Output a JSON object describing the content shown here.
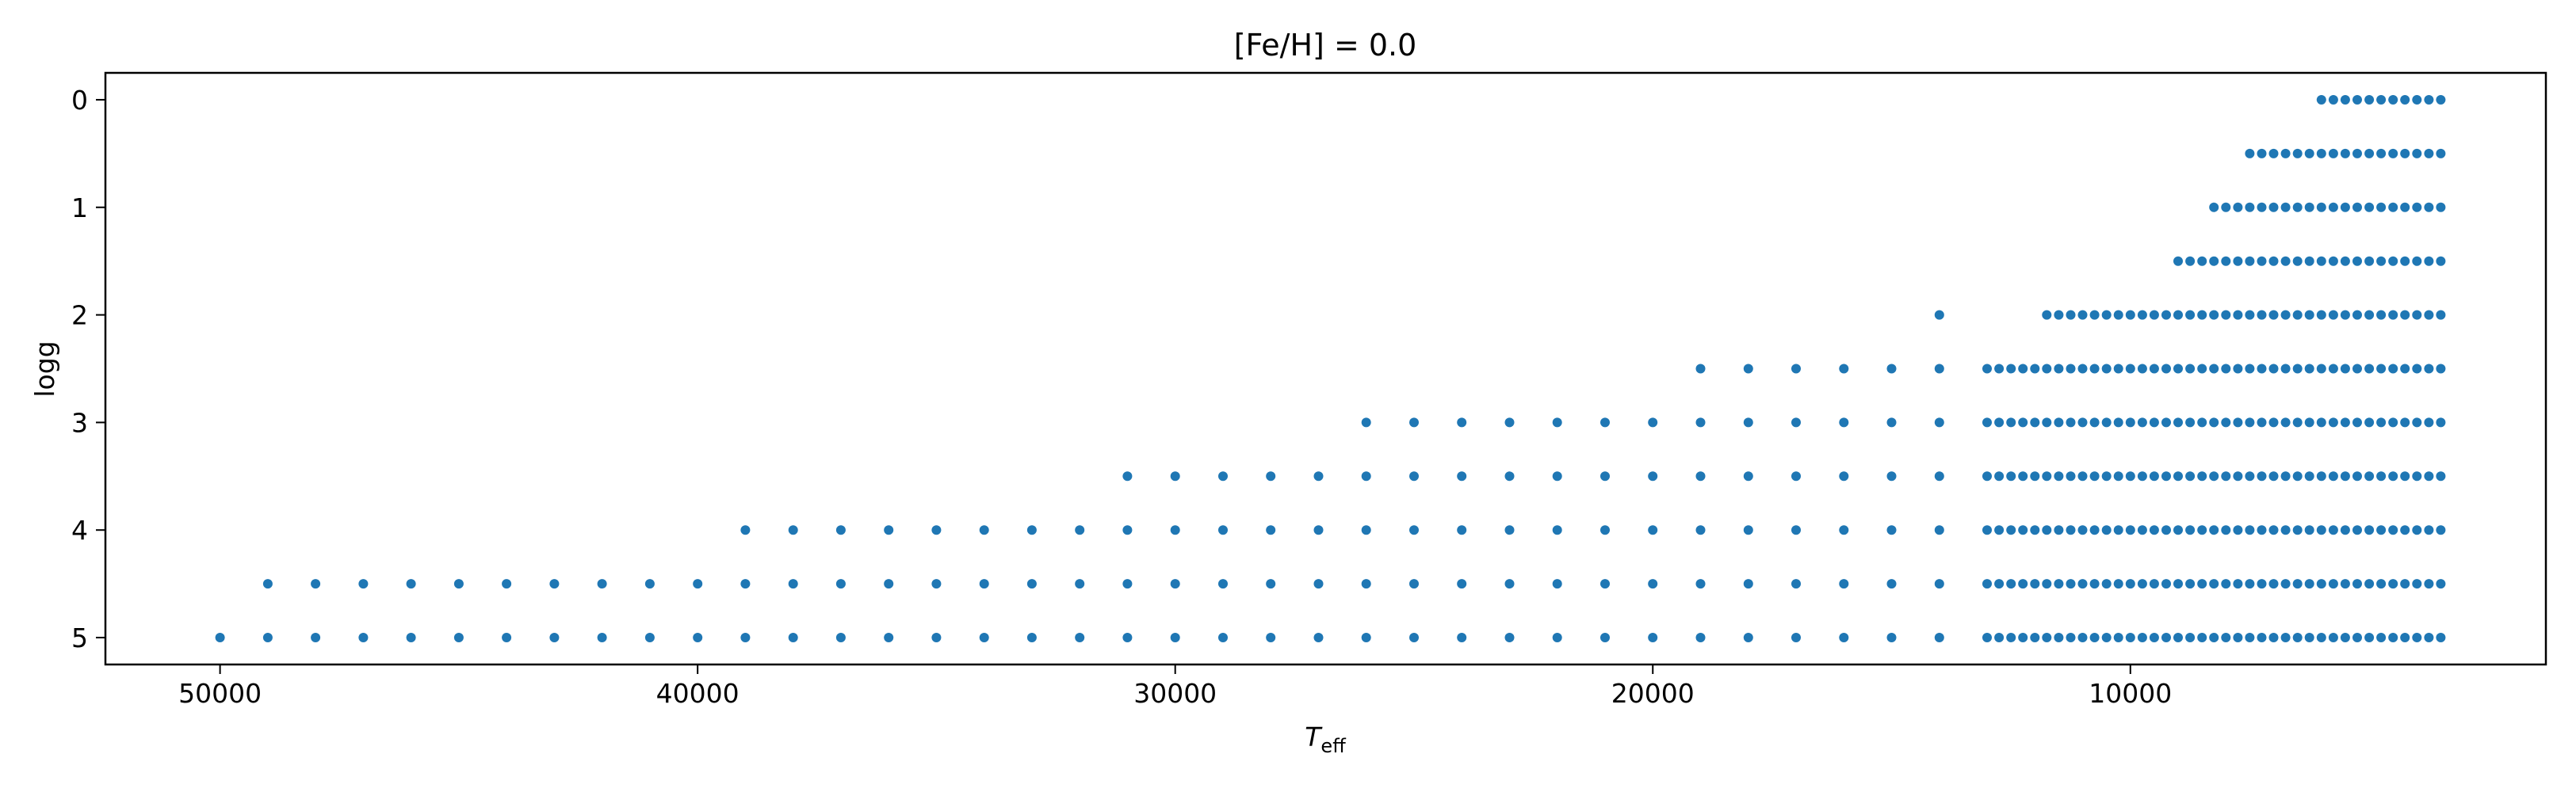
{
  "chart_data": {
    "type": "scatter",
    "title": "[Fe/H] = 0.0",
    "xlabel_main": "T",
    "xlabel_sub": "eff",
    "ylabel": "logg",
    "xlim": [
      52400,
      1300
    ],
    "ylim": [
      5.25,
      -0.25
    ],
    "x_inverted": true,
    "y_inverted": true,
    "xticks": [
      50000,
      40000,
      30000,
      20000,
      10000
    ],
    "yticks": [
      0,
      1,
      2,
      3,
      4,
      5
    ],
    "grid": false,
    "marker_color": "#1f77b4",
    "series": [
      {
        "note_rows": "each row: logg value with list of Teff values",
        "rows": [
          {
            "logg": 0.0,
            "teff": [
              6000,
              5750,
              5500,
              5250,
              5000,
              4750,
              4500,
              4250,
              4000,
              3750,
              3500
            ]
          },
          {
            "logg": 0.5,
            "teff": [
              7500,
              7250,
              7000,
              6750,
              6500,
              6250,
              6000,
              5750,
              5500,
              5250,
              5000,
              4750,
              4500,
              4250,
              4000,
              3750,
              3500
            ]
          },
          {
            "logg": 1.0,
            "teff": [
              8250,
              8000,
              7750,
              7500,
              7250,
              7000,
              6750,
              6500,
              6250,
              6000,
              5750,
              5500,
              5250,
              5000,
              4750,
              4500,
              4250,
              4000,
              3750,
              3500
            ]
          },
          {
            "logg": 1.5,
            "teff": [
              9000,
              8750,
              8500,
              8250,
              8000,
              7750,
              7500,
              7250,
              7000,
              6750,
              6500,
              6250,
              6000,
              5750,
              5500,
              5250,
              5000,
              4750,
              4500,
              4250,
              4000,
              3750,
              3500
            ]
          },
          {
            "logg": 2.0,
            "teff": [
              14000,
              11750,
              11500,
              11250,
              11000,
              10750,
              10500,
              10250,
              10000,
              9750,
              9500,
              9250,
              9000,
              8750,
              8500,
              8250,
              8000,
              7750,
              7500,
              7250,
              7000,
              6750,
              6500,
              6250,
              6000,
              5750,
              5500,
              5250,
              5000,
              4750,
              4500,
              4250,
              4000,
              3750,
              3500
            ]
          },
          {
            "logg": 2.5,
            "teff": [
              19000,
              18000,
              17000,
              16000,
              15000,
              14000,
              13000,
              12750,
              12500,
              12250,
              12000,
              11750,
              11500,
              11250,
              11000,
              10750,
              10500,
              10250,
              10000,
              9750,
              9500,
              9250,
              9000,
              8750,
              8500,
              8250,
              8000,
              7750,
              7500,
              7250,
              7000,
              6750,
              6500,
              6250,
              6000,
              5750,
              5500,
              5250,
              5000,
              4750,
              4500,
              4250,
              4000,
              3750,
              3500
            ]
          },
          {
            "logg": 3.0,
            "teff": [
              26000,
              25000,
              24000,
              23000,
              22000,
              21000,
              20000,
              19000,
              18000,
              17000,
              16000,
              15000,
              14000,
              13000,
              12750,
              12500,
              12250,
              12000,
              11750,
              11500,
              11250,
              11000,
              10750,
              10500,
              10250,
              10000,
              9750,
              9500,
              9250,
              9000,
              8750,
              8500,
              8250,
              8000,
              7750,
              7500,
              7250,
              7000,
              6750,
              6500,
              6250,
              6000,
              5750,
              5500,
              5250,
              5000,
              4750,
              4500,
              4250,
              4000,
              3750,
              3500
            ]
          },
          {
            "logg": 3.5,
            "teff": [
              31000,
              30000,
              29000,
              28000,
              27000,
              26000,
              25000,
              24000,
              23000,
              22000,
              21000,
              20000,
              19000,
              18000,
              17000,
              16000,
              15000,
              14000,
              13000,
              12750,
              12500,
              12250,
              12000,
              11750,
              11500,
              11250,
              11000,
              10750,
              10500,
              10250,
              10000,
              9750,
              9500,
              9250,
              9000,
              8750,
              8500,
              8250,
              8000,
              7750,
              7500,
              7250,
              7000,
              6750,
              6500,
              6250,
              6000,
              5750,
              5500,
              5250,
              5000,
              4750,
              4500,
              4250,
              4000,
              3750,
              3500
            ]
          },
          {
            "logg": 4.0,
            "teff": [
              39000,
              38000,
              37000,
              36000,
              35000,
              34000,
              33000,
              32000,
              31000,
              30000,
              29000,
              28000,
              27000,
              26000,
              25000,
              24000,
              23000,
              22000,
              21000,
              20000,
              19000,
              18000,
              17000,
              16000,
              15000,
              14000,
              13000,
              12750,
              12500,
              12250,
              12000,
              11750,
              11500,
              11250,
              11000,
              10750,
              10500,
              10250,
              10000,
              9750,
              9500,
              9250,
              9000,
              8750,
              8500,
              8250,
              8000,
              7750,
              7500,
              7250,
              7000,
              6750,
              6500,
              6250,
              6000,
              5750,
              5500,
              5250,
              5000,
              4750,
              4500,
              4250,
              4000,
              3750,
              3500
            ]
          },
          {
            "logg": 4.5,
            "teff": [
              49000,
              48000,
              47000,
              46000,
              45000,
              44000,
              43000,
              42000,
              41000,
              40000,
              39000,
              38000,
              37000,
              36000,
              35000,
              34000,
              33000,
              32000,
              31000,
              30000,
              29000,
              28000,
              27000,
              26000,
              25000,
              24000,
              23000,
              22000,
              21000,
              20000,
              19000,
              18000,
              17000,
              16000,
              15000,
              14000,
              13000,
              12750,
              12500,
              12250,
              12000,
              11750,
              11500,
              11250,
              11000,
              10750,
              10500,
              10250,
              10000,
              9750,
              9500,
              9250,
              9000,
              8750,
              8500,
              8250,
              8000,
              7750,
              7500,
              7250,
              7000,
              6750,
              6500,
              6250,
              6000,
              5750,
              5500,
              5250,
              5000,
              4750,
              4500,
              4250,
              4000,
              3750,
              3500
            ]
          },
          {
            "logg": 5.0,
            "teff": [
              50000,
              49000,
              48000,
              47000,
              46000,
              45000,
              44000,
              43000,
              42000,
              41000,
              40000,
              39000,
              38000,
              37000,
              36000,
              35000,
              34000,
              33000,
              32000,
              31000,
              30000,
              29000,
              28000,
              27000,
              26000,
              25000,
              24000,
              23000,
              22000,
              21000,
              20000,
              19000,
              18000,
              17000,
              16000,
              15000,
              14000,
              13000,
              12750,
              12500,
              12250,
              12000,
              11750,
              11500,
              11250,
              11000,
              10750,
              10500,
              10250,
              10000,
              9750,
              9500,
              9250,
              9000,
              8750,
              8500,
              8250,
              8000,
              7750,
              7500,
              7250,
              7000,
              6750,
              6500,
              6250,
              6000,
              5750,
              5500,
              5250,
              5000,
              4750,
              4500,
              4250,
              4000,
              3750,
              3500
            ]
          }
        ]
      }
    ]
  }
}
